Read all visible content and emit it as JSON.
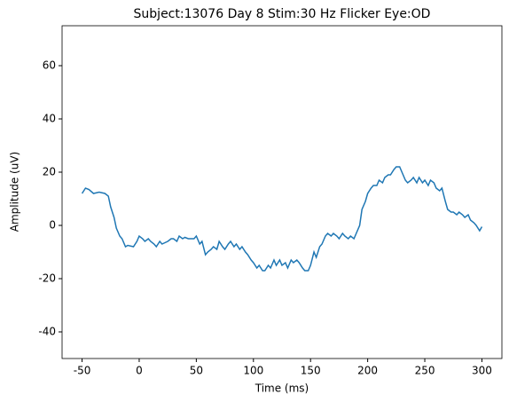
{
  "chart_data": {
    "type": "line",
    "title": "Subject:13076 Day 8 Stim:30 Hz Flicker Eye:OD",
    "x_label": "Time (ms)",
    "y_label": "Amplitude (uV)",
    "x": [
      -50,
      -47,
      -44,
      -40,
      -35,
      -30,
      -27,
      -25,
      -22,
      -20,
      -17,
      -15,
      -12,
      -10,
      -5,
      -2,
      0,
      3,
      5,
      8,
      10,
      13,
      15,
      18,
      20,
      25,
      28,
      30,
      33,
      35,
      38,
      40,
      43,
      45,
      48,
      50,
      53,
      55,
      58,
      60,
      63,
      65,
      68,
      70,
      73,
      75,
      78,
      80,
      83,
      85,
      88,
      90,
      93,
      95,
      98,
      100,
      103,
      105,
      108,
      110,
      113,
      115,
      118,
      120,
      123,
      125,
      128,
      130,
      133,
      135,
      138,
      140,
      143,
      145,
      148,
      150,
      153,
      155,
      158,
      160,
      163,
      165,
      168,
      170,
      173,
      175,
      178,
      180,
      183,
      185,
      188,
      190,
      193,
      195,
      198,
      200,
      203,
      205,
      208,
      210,
      213,
      215,
      218,
      220,
      223,
      225,
      228,
      230,
      233,
      235,
      238,
      240,
      243,
      245,
      248,
      250,
      253,
      255,
      258,
      260,
      263,
      265,
      268,
      270,
      273,
      275,
      278,
      280,
      283,
      285,
      288,
      290,
      293,
      295,
      298,
      300
    ],
    "series": [
      {
        "name": "Amplitude",
        "color": "#1f77b4",
        "values": [
          12,
          14,
          13.5,
          12,
          12.5,
          12,
          11,
          7,
          3,
          -1,
          -4,
          -5,
          -8,
          -7.5,
          -8,
          -6,
          -4,
          -5,
          -6,
          -5,
          -6,
          -7,
          -8,
          -6,
          -7,
          -6,
          -5,
          -5,
          -6,
          -4,
          -5,
          -4.5,
          -5,
          -5,
          -5,
          -4,
          -7,
          -6,
          -11,
          -10,
          -9,
          -8,
          -9,
          -6,
          -8,
          -9,
          -7,
          -6,
          -8,
          -7,
          -9,
          -8,
          -10,
          -11,
          -13,
          -14,
          -16,
          -15,
          -17,
          -17,
          -15,
          -16,
          -13,
          -15,
          -13,
          -15,
          -14,
          -16,
          -13,
          -14,
          -13,
          -14,
          -16,
          -17,
          -17,
          -15,
          -10,
          -12,
          -8,
          -7,
          -4,
          -3,
          -4,
          -3,
          -4,
          -5,
          -3,
          -4,
          -5,
          -4,
          -5,
          -3,
          0,
          6,
          9,
          12,
          14,
          15,
          15,
          17,
          16,
          18,
          19,
          19,
          21,
          22,
          22,
          20,
          17,
          16,
          17,
          18,
          16,
          18,
          16,
          17,
          15,
          17,
          16,
          14,
          13,
          14,
          9,
          6,
          5,
          5,
          4,
          5,
          4,
          3,
          4,
          2,
          1,
          0,
          -2,
          -0.5
        ]
      }
    ],
    "xlim": [
      -67.5,
      317.5
    ],
    "xticks": [
      -50,
      0,
      50,
      100,
      150,
      200,
      250,
      300
    ],
    "ylim": [
      -50,
      75
    ],
    "yticks": [
      -40,
      -20,
      0,
      20,
      40,
      60
    ]
  }
}
